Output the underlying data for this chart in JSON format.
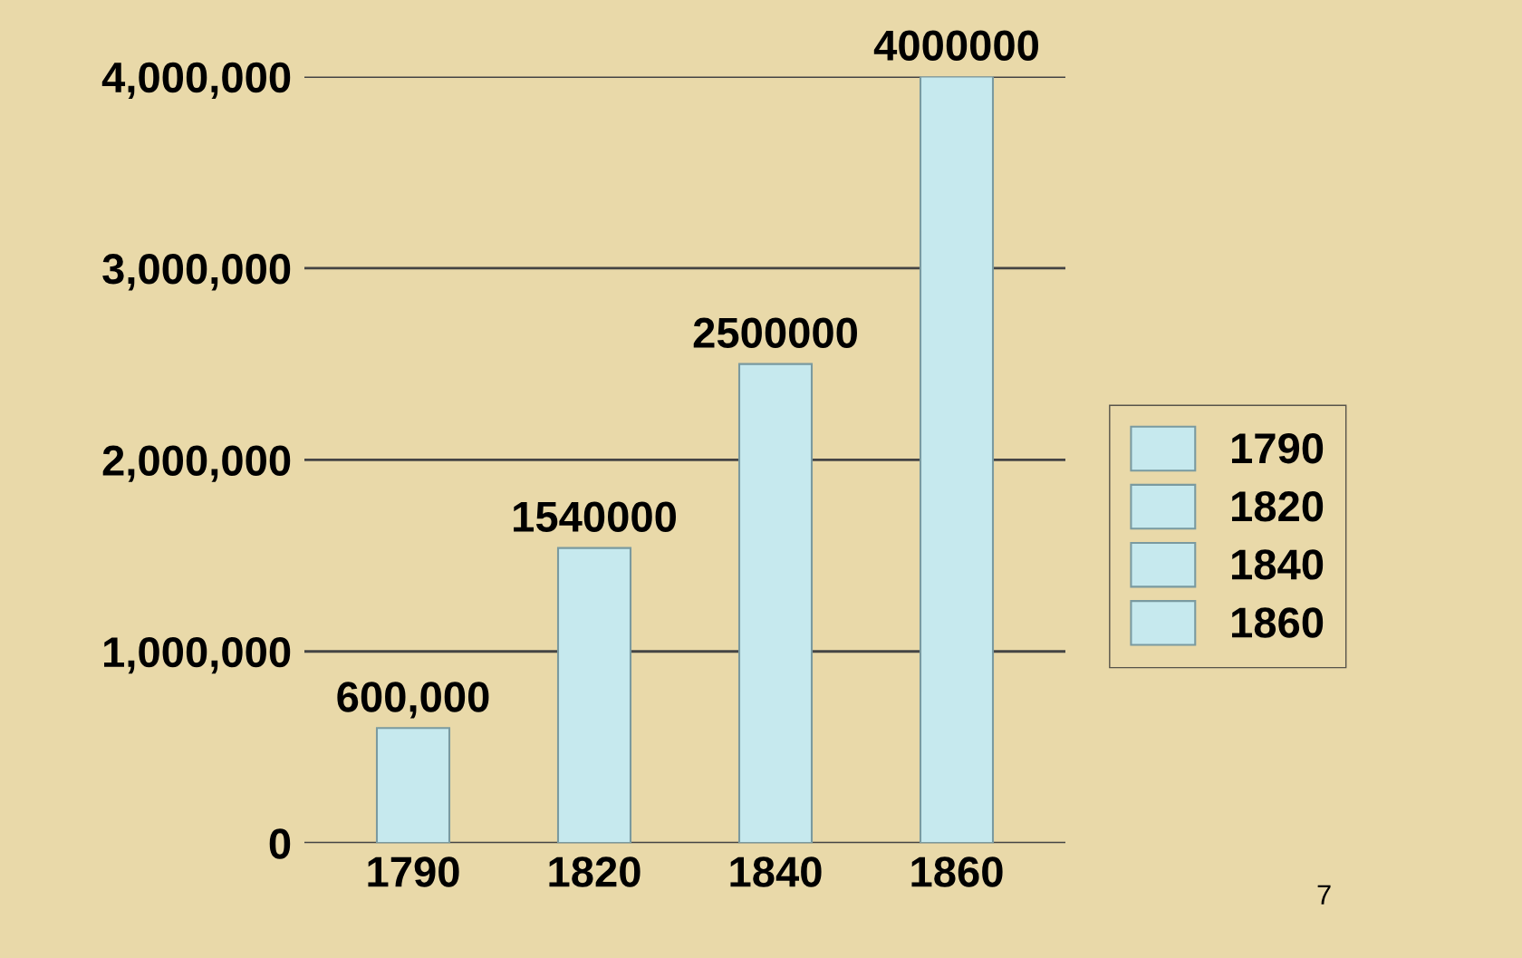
{
  "chart_data": {
    "type": "bar",
    "categories": [
      "1790",
      "1820",
      "1840",
      "1860"
    ],
    "series": [
      {
        "name": "1790",
        "color": "#c6e9ee",
        "values": [
          600000,
          null,
          null,
          null
        ],
        "value_labels": [
          "600,000",
          null,
          null,
          null
        ]
      },
      {
        "name": "1820",
        "color": "#c6e9ee",
        "values": [
          null,
          1540000,
          null,
          null
        ],
        "value_labels": [
          null,
          "1540000",
          null,
          null
        ]
      },
      {
        "name": "1840",
        "color": "#c6e9ee",
        "values": [
          null,
          null,
          2500000,
          null
        ],
        "value_labels": [
          null,
          null,
          "2500000",
          null
        ]
      },
      {
        "name": "1860",
        "color": "#c6e9ee",
        "values": [
          null,
          null,
          null,
          4000000
        ],
        "value_labels": [
          null,
          null,
          null,
          "4000000"
        ]
      }
    ],
    "ylim": [
      0,
      4000000
    ],
    "yticks": [
      0,
      {
        "value": 1000000,
        "label": "1,000,000"
      },
      {
        "value": 2000000,
        "label": "2,000,000"
      },
      {
        "value": 3000000,
        "label": "3,000,000"
      },
      {
        "value": 4000000,
        "label": "4,000,000"
      }
    ],
    "grid": "y",
    "legend": "right",
    "annotations": [
      "7"
    ]
  }
}
